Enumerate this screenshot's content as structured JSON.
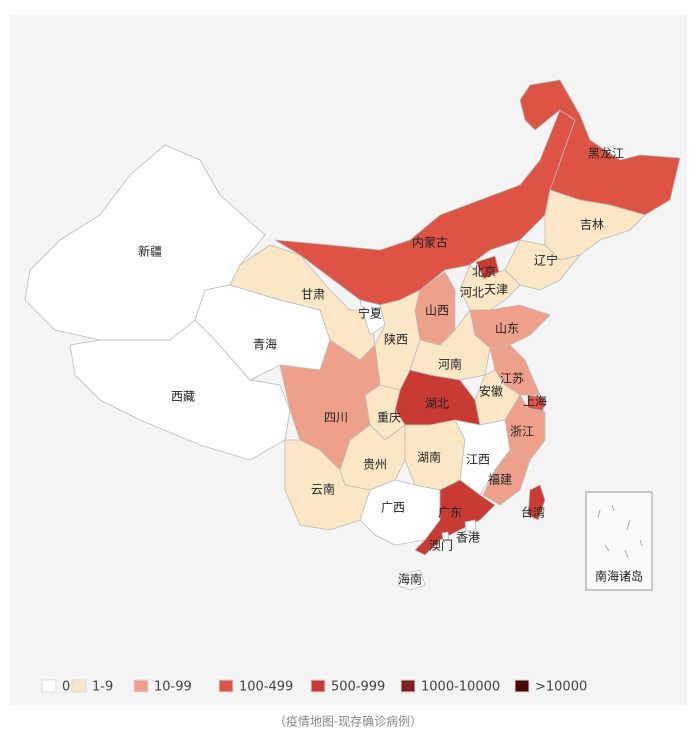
{
  "provinces": [
    {
      "name": "新疆",
      "color": "#ffffff"
    },
    {
      "name": "西藏",
      "color": "#ffffff"
    },
    {
      "name": "青海",
      "color": "#ffffff"
    },
    {
      "name": "甘肃",
      "color": "#fbe7c6"
    },
    {
      "name": "内蒙古",
      "color": "#dd5444"
    },
    {
      "name": "黑龙江",
      "color": "#dd5444"
    },
    {
      "name": "吉林",
      "color": "#fbe7c6"
    },
    {
      "name": "辽宁",
      "color": "#fbe7c6"
    },
    {
      "name": "北京",
      "color": "#c93a33"
    },
    {
      "name": "天津",
      "color": "#fbe7c6"
    },
    {
      "name": "河北",
      "color": "#fbe7c6"
    },
    {
      "name": "山西",
      "color": "#eea08a"
    },
    {
      "name": "宁夏",
      "color": "#ffffff"
    },
    {
      "name": "陕西",
      "color": "#fbe7c6"
    },
    {
      "name": "山东",
      "color": "#eea08a"
    },
    {
      "name": "河南",
      "color": "#fbe7c6"
    },
    {
      "name": "江苏",
      "color": "#eea08a"
    },
    {
      "name": "安徽",
      "color": "#fbe7c6"
    },
    {
      "name": "上海",
      "color": "#dd5444"
    },
    {
      "name": "浙江",
      "color": "#eea08a"
    },
    {
      "name": "湖北",
      "color": "#c93a33"
    },
    {
      "name": "重庆",
      "color": "#fbe7c6"
    },
    {
      "name": "四川",
      "color": "#eea08a"
    },
    {
      "name": "湖南",
      "color": "#fbe7c6"
    },
    {
      "name": "江西",
      "color": "#ffffff"
    },
    {
      "name": "福建",
      "color": "#eea08a"
    },
    {
      "name": "贵州",
      "color": "#fbe7c6"
    },
    {
      "name": "云南",
      "color": "#fbe7c6"
    },
    {
      "name": "广西",
      "color": "#ffffff"
    },
    {
      "name": "广东",
      "color": "#c93a33"
    },
    {
      "name": "香港",
      "color": "#ffffff"
    },
    {
      "name": "澳门",
      "color": "#ffffff"
    },
    {
      "name": "海南",
      "color": "#ffffff"
    },
    {
      "name": "台湾",
      "color": "#c93a33"
    }
  ],
  "inset_label": "南海诸岛",
  "legend": [
    {
      "label": "0",
      "color": "#ffffff"
    },
    {
      "label": "1-9",
      "color": "#fbe7c6"
    },
    {
      "label": "10-99",
      "color": "#eea08a"
    },
    {
      "label": "100-499",
      "color": "#dd5444"
    },
    {
      "label": "500-999",
      "color": "#c93a33"
    },
    {
      "label": "1000-10000",
      "color": "#7a1e1e"
    },
    {
      "label": ">10000",
      "color": "#4a0909"
    }
  ],
  "caption": "（疫情地图-现存确诊病例）"
}
